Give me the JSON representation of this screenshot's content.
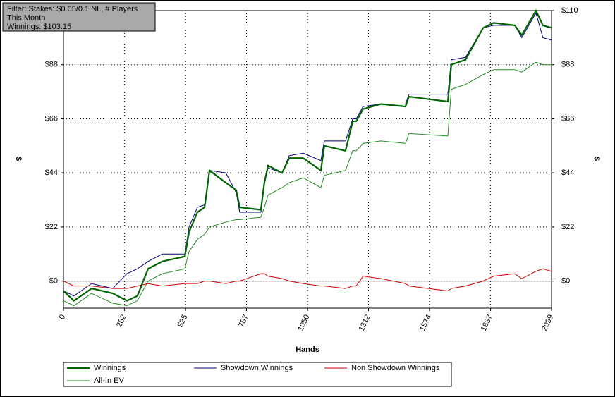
{
  "chart_data": {
    "type": "line",
    "annotations": [
      "Filter: Stakes: $0.05/0.1 NL, # Players",
      "This Month",
      "Winnings: $103.15"
    ],
    "x_label": "Hands",
    "y_label": "$",
    "y2_label": "$",
    "x": [
      0,
      45,
      121,
      212,
      273,
      318,
      364,
      425,
      522,
      540,
      576,
      607,
      628,
      698,
      743,
      758,
      849,
      864,
      880,
      940,
      971,
      1031,
      1107,
      1122,
      1213,
      1244,
      1259,
      1289,
      1365,
      1471,
      1486,
      1653,
      1668,
      1729,
      1805,
      1850,
      1941,
      1971,
      2032,
      2062,
      2099
    ],
    "series": [
      {
        "name": "Winnings",
        "color": "#006400",
        "values": [
          -4,
          -8,
          -3,
          -5,
          -8,
          -6,
          5,
          8,
          10,
          20,
          28,
          30,
          45,
          40,
          37,
          30,
          29,
          40,
          47,
          44,
          50,
          50,
          45,
          55,
          53,
          65,
          65,
          70,
          72,
          71,
          75,
          73,
          88,
          90,
          103,
          105,
          104,
          100,
          110,
          104,
          103
        ]
      },
      {
        "name": "Showdown Winnings",
        "color": "#000080",
        "values": [
          -4,
          -6,
          -1,
          -3,
          3,
          5,
          8,
          11,
          11,
          22,
          30,
          31,
          45,
          44,
          36,
          28,
          28,
          40,
          46,
          44,
          51,
          52,
          49,
          57,
          57,
          66,
          66,
          71,
          72,
          72,
          76,
          76,
          90,
          91,
          103,
          104,
          104,
          99,
          109,
          99,
          98
        ]
      },
      {
        "name": "Non Showdown Winnings",
        "color": "#cc0000",
        "values": [
          0,
          -2,
          -2,
          -3,
          -3,
          -2,
          -1,
          -2,
          -1,
          -1,
          -1,
          0,
          0,
          -1,
          0,
          0,
          3,
          3,
          2,
          1,
          0,
          -1,
          -2,
          -2,
          -3,
          -2,
          -2,
          2,
          1,
          -1,
          -2,
          -4,
          -3,
          -2,
          0,
          2,
          3,
          1,
          4,
          5,
          4
        ]
      },
      {
        "name": "All-In EV",
        "color": "#228b22",
        "values": [
          -8,
          -10,
          -5,
          -9,
          -10,
          -8,
          0,
          3,
          5,
          12,
          17,
          19,
          22,
          24,
          25,
          25,
          26,
          30,
          35,
          38,
          40,
          42,
          38,
          43,
          45,
          53,
          53,
          56,
          57,
          56,
          60,
          59,
          78,
          80,
          84,
          86,
          86,
          85,
          89,
          88,
          88
        ]
      }
    ],
    "xlim": [
      0,
      2099
    ],
    "xticks": [
      0,
      262,
      525,
      787,
      1050,
      1312,
      1574,
      1837,
      2099
    ],
    "ylim": [
      -11,
      110
    ],
    "yticks": [
      {
        "value": 0,
        "label": "$0"
      },
      {
        "value": 22,
        "label": "$22"
      },
      {
        "value": 44,
        "label": "$44"
      },
      {
        "value": 66,
        "label": "$66"
      },
      {
        "value": 88,
        "label": "$88"
      },
      {
        "value": 110,
        "label": "$110"
      }
    ],
    "grid": true
  }
}
